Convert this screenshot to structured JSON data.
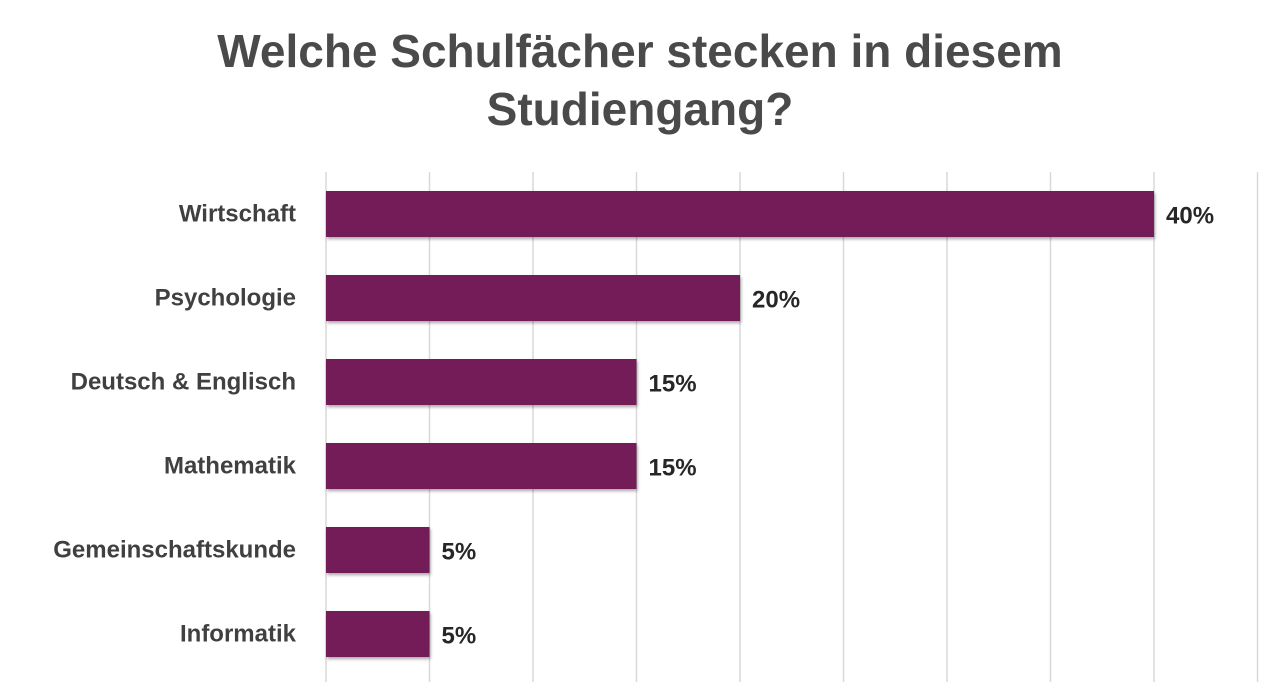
{
  "chart_data": {
    "type": "bar",
    "orientation": "horizontal",
    "title_lines": [
      "Welche Schulfächer stecken in diesem",
      "Studiengang?"
    ],
    "categories": [
      "Wirtschaft",
      "Psychologie",
      "Deutsch & Englisch",
      "Mathematik",
      "Gemeinschaftskunde",
      "Informatik"
    ],
    "values": [
      40,
      20,
      15,
      15,
      5,
      5
    ],
    "value_labels": [
      "40%",
      "20%",
      "15%",
      "15%",
      "5%",
      "5%"
    ],
    "xlim": [
      0,
      45
    ],
    "x_grid_step": 5,
    "grid": true,
    "legend": "none",
    "bar_color": "#731b58",
    "gridline_color": "#d9d9d9"
  }
}
